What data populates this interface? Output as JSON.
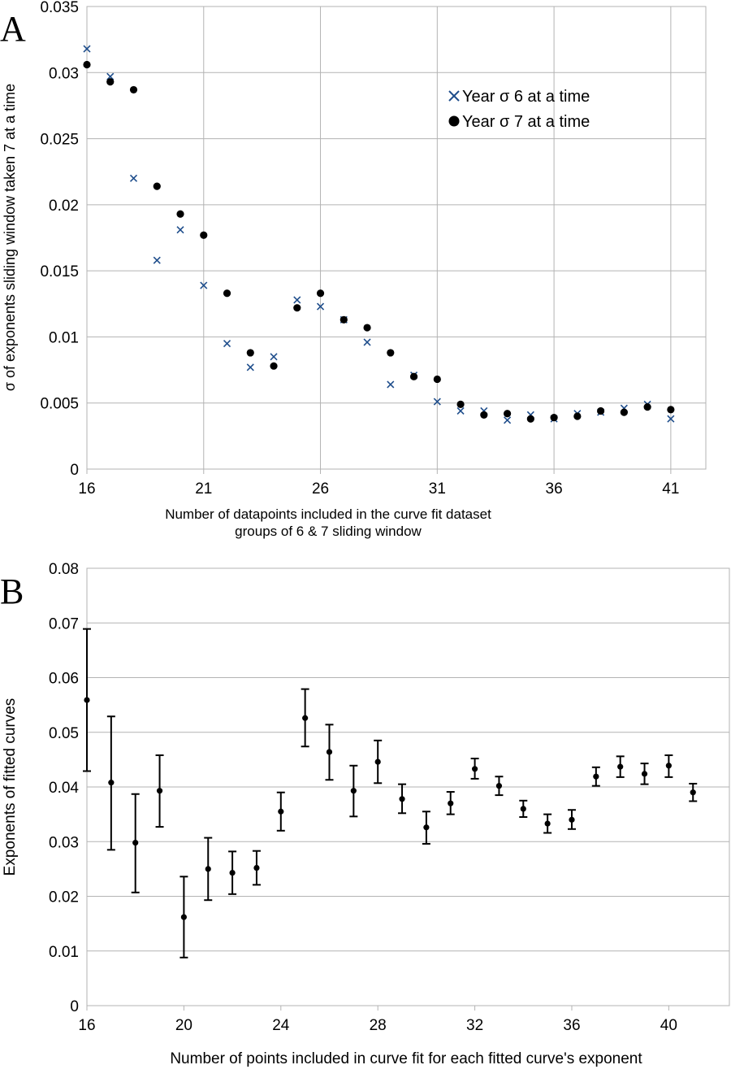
{
  "chart_data": [
    {
      "panel_label": "A",
      "type": "scatter",
      "xlabel": "Number of datapoints included in the curve fit dataset",
      "xlabel2": "groups of 6 & 7 sliding window",
      "ylabel": "σ of exponents sliding window taken 7 at a time",
      "xlim": [
        16,
        42.5
      ],
      "ylim": [
        0,
        0.035
      ],
      "xticks": [
        "16",
        "21",
        "26",
        "31",
        "36",
        "41"
      ],
      "xtick_values": [
        16,
        21,
        26,
        31,
        36,
        41
      ],
      "yticks": [
        "0",
        "0.005",
        "0.01",
        "0.015",
        "0.02",
        "0.025",
        "0.03",
        "0.035"
      ],
      "ytick_values": [
        0,
        0.005,
        0.01,
        0.015,
        0.02,
        0.025,
        0.03,
        0.035
      ],
      "grid": true,
      "legend_position": "top-right",
      "series": [
        {
          "name": "Year σ 6 at a time",
          "marker": "x",
          "color": "#1f4e8c",
          "x": [
            16,
            17,
            18,
            19,
            20,
            21,
            22,
            23,
            24,
            25,
            26,
            27,
            28,
            29,
            30,
            31,
            32,
            33,
            34,
            35,
            36,
            37,
            38,
            39,
            40,
            41
          ],
          "y": [
            0.0318,
            0.0297,
            0.022,
            0.0158,
            0.0181,
            0.0139,
            0.0095,
            0.0077,
            0.0085,
            0.0128,
            0.0123,
            0.0113,
            0.0096,
            0.0064,
            0.0071,
            0.0051,
            0.0044,
            0.0044,
            0.0037,
            0.0041,
            0.0038,
            0.0042,
            0.0043,
            0.0046,
            0.0049,
            0.0038
          ]
        },
        {
          "name": "Year σ 7 at a time",
          "marker": "circle",
          "color": "#000000",
          "x": [
            16,
            17,
            18,
            19,
            20,
            21,
            22,
            23,
            24,
            25,
            26,
            27,
            28,
            29,
            30,
            31,
            32,
            33,
            34,
            35,
            36,
            37,
            38,
            39,
            40,
            41
          ],
          "y": [
            0.0306,
            0.0293,
            0.0287,
            0.0214,
            0.0193,
            0.0177,
            0.0133,
            0.0088,
            0.0078,
            0.0122,
            0.0133,
            0.0113,
            0.0107,
            0.0088,
            0.007,
            0.0068,
            0.0049,
            0.0041,
            0.0042,
            0.0038,
            0.0039,
            0.004,
            0.0044,
            0.0043,
            0.0047,
            0.0045
          ]
        }
      ]
    },
    {
      "panel_label": "B",
      "type": "scatter",
      "xlabel": "Number of points included in curve fit for each fitted curve's exponent",
      "ylabel": "Exponents of fitted curves",
      "xlim": [
        16,
        42.5
      ],
      "ylim": [
        0,
        0.08
      ],
      "xticks": [
        "16",
        "20",
        "24",
        "28",
        "32",
        "36",
        "40"
      ],
      "xtick_values": [
        16,
        20,
        24,
        28,
        32,
        36,
        40
      ],
      "yticks": [
        "0",
        "0.01",
        "0.02",
        "0.03",
        "0.04",
        "0.05",
        "0.06",
        "0.07",
        "0.08"
      ],
      "ytick_values": [
        0,
        0.01,
        0.02,
        0.03,
        0.04,
        0.05,
        0.06,
        0.07,
        0.08
      ],
      "grid": true,
      "series": [
        {
          "marker": "circle",
          "color": "#000000",
          "error_bars": true,
          "x": [
            16,
            17,
            18,
            19,
            20,
            21,
            22,
            23,
            24,
            25,
            26,
            27,
            28,
            29,
            30,
            31,
            32,
            33,
            34,
            35,
            36,
            37,
            38,
            39,
            40,
            41
          ],
          "y": [
            0.0559,
            0.0408,
            0.0298,
            0.0393,
            0.0162,
            0.025,
            0.0243,
            0.0252,
            0.0355,
            0.0526,
            0.0464,
            0.0393,
            0.0446,
            0.0378,
            0.0326,
            0.037,
            0.0433,
            0.0402,
            0.036,
            0.0333,
            0.034,
            0.0419,
            0.0437,
            0.0424,
            0.0439,
            0.039
          ],
          "y_low": [
            0.0429,
            0.0285,
            0.0207,
            0.0327,
            0.0088,
            0.0193,
            0.0204,
            0.0221,
            0.032,
            0.0474,
            0.0413,
            0.0346,
            0.0407,
            0.0352,
            0.0296,
            0.035,
            0.0415,
            0.0385,
            0.0345,
            0.0316,
            0.0323,
            0.0402,
            0.0418,
            0.0405,
            0.0418,
            0.0374
          ],
          "y_high": [
            0.0689,
            0.0529,
            0.0387,
            0.0458,
            0.0236,
            0.0307,
            0.0282,
            0.0283,
            0.039,
            0.0579,
            0.0514,
            0.0439,
            0.0485,
            0.0405,
            0.0355,
            0.0391,
            0.0452,
            0.0419,
            0.0375,
            0.035,
            0.0358,
            0.0436,
            0.0456,
            0.0443,
            0.0458,
            0.0406
          ]
        }
      ]
    }
  ]
}
